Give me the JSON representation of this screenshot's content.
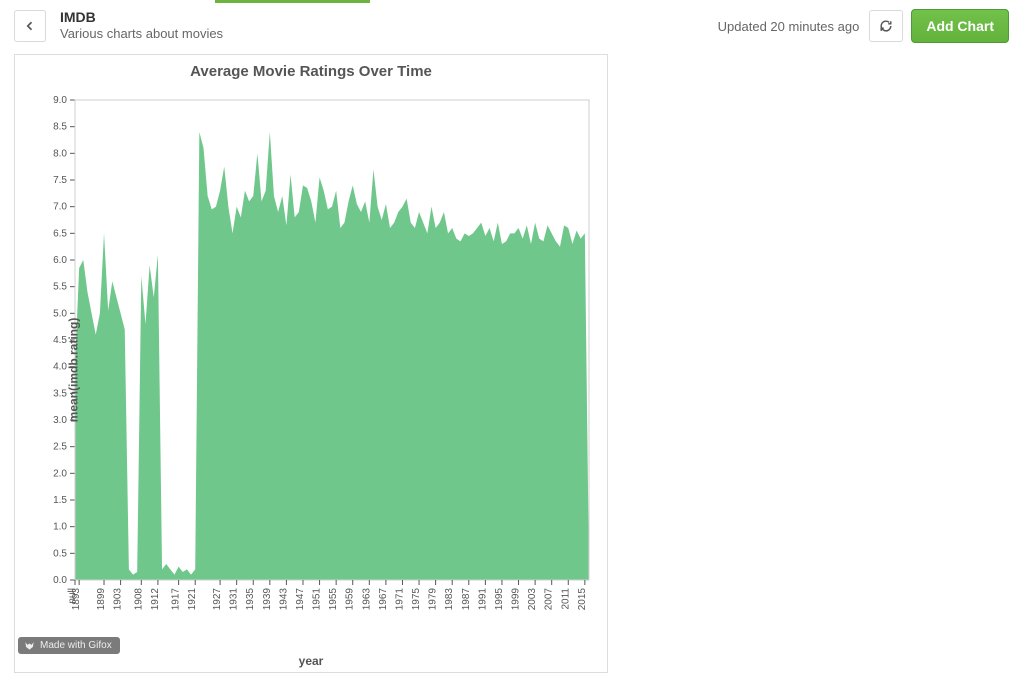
{
  "header": {
    "title": "IMDB",
    "subtitle": "Various charts about movies",
    "updated_text": "Updated 20 minutes ago",
    "add_chart_label": "Add Chart"
  },
  "accent_color": "#6db33f",
  "chart": {
    "type": "area",
    "title": "Average Movie Ratings Over Time",
    "title_fontsize": 15,
    "xlabel": "year",
    "ylabel": "mean(imdb.rating)",
    "label_fontsize": 12,
    "ylim": [
      0,
      9.0
    ],
    "ytick_step": 0.5,
    "yticks": [
      "0.0",
      "0.5",
      "1.0",
      "1.5",
      "2.0",
      "2.5",
      "3.0",
      "3.5",
      "4.0",
      "4.5",
      "5.0",
      "5.5",
      "6.0",
      "6.5",
      "7.0",
      "7.5",
      "8.0",
      "8.5",
      "9.0"
    ],
    "xticks": [
      "null",
      "1893",
      "1899",
      "1903",
      "1908",
      "1912",
      "1917",
      "1921",
      "1927",
      "1931",
      "1935",
      "1939",
      "1943",
      "1947",
      "1951",
      "1955",
      "1959",
      "1963",
      "1967",
      "1971",
      "1975",
      "1979",
      "1983",
      "1987",
      "1991",
      "1995",
      "1999",
      "2003",
      "2007",
      "2011",
      "2015"
    ],
    "xtick_step": 4,
    "xvalues_start": 0,
    "xvalues": [
      "null",
      "1893",
      "1894",
      "1895",
      "1896",
      "1897",
      "1898",
      "1899",
      "1900",
      "1901",
      "1902",
      "1903",
      "1904",
      "1905",
      "1906",
      "1907",
      "1908",
      "1909",
      "1910",
      "1911",
      "1912",
      "1913",
      "1914",
      "1915",
      "1916",
      "1917",
      "1918",
      "1919",
      "1920",
      "1921",
      "1922",
      "1923",
      "1924",
      "1925",
      "1926",
      "1927",
      "1928",
      "1929",
      "1930",
      "1931",
      "1932",
      "1933",
      "1934",
      "1935",
      "1936",
      "1937",
      "1938",
      "1939",
      "1940",
      "1941",
      "1942",
      "1943",
      "1944",
      "1945",
      "1946",
      "1947",
      "1948",
      "1949",
      "1950",
      "1951",
      "1952",
      "1953",
      "1954",
      "1955",
      "1956",
      "1957",
      "1958",
      "1959",
      "1960",
      "1961",
      "1962",
      "1963",
      "1964",
      "1965",
      "1966",
      "1967",
      "1968",
      "1969",
      "1970",
      "1971",
      "1972",
      "1973",
      "1974",
      "1975",
      "1976",
      "1977",
      "1978",
      "1979",
      "1980",
      "1981",
      "1982",
      "1983",
      "1984",
      "1985",
      "1986",
      "1987",
      "1988",
      "1989",
      "1990",
      "1991",
      "1992",
      "1993",
      "1994",
      "1995",
      "1996",
      "1997",
      "1998",
      "1999",
      "2000",
      "2001",
      "2002",
      "2003",
      "2004",
      "2005",
      "2006",
      "2007",
      "2008",
      "2009",
      "2010",
      "2011",
      "2012",
      "2013",
      "2014",
      "2015",
      "2016"
    ],
    "yvalues": [
      4.0,
      5.85,
      6.0,
      5.4,
      5.0,
      4.6,
      5.0,
      6.5,
      5.05,
      5.6,
      5.3,
      5.0,
      4.7,
      0.2,
      0.1,
      0.15,
      5.7,
      4.8,
      5.9,
      5.3,
      6.1,
      0.2,
      0.3,
      0.2,
      0.1,
      0.25,
      0.15,
      0.2,
      0.1,
      0.2,
      8.4,
      8.1,
      7.2,
      6.95,
      7.0,
      7.3,
      7.75,
      7.0,
      6.5,
      7.0,
      6.8,
      7.3,
      7.1,
      7.2,
      8.0,
      7.1,
      7.3,
      8.4,
      7.2,
      6.9,
      7.2,
      6.65,
      7.6,
      6.8,
      6.9,
      7.4,
      7.35,
      7.1,
      6.7,
      7.55,
      7.3,
      6.95,
      7.0,
      7.3,
      6.6,
      6.7,
      7.1,
      7.4,
      7.05,
      6.9,
      7.1,
      6.7,
      7.7,
      7.0,
      6.75,
      7.05,
      6.6,
      6.7,
      6.9,
      7.0,
      7.15,
      6.7,
      6.6,
      6.9,
      6.7,
      6.5,
      7.0,
      6.6,
      6.7,
      6.9,
      6.5,
      6.6,
      6.4,
      6.35,
      6.5,
      6.45,
      6.5,
      6.6,
      6.7,
      6.45,
      6.6,
      6.35,
      6.7,
      6.3,
      6.35,
      6.5,
      6.5,
      6.6,
      6.4,
      6.65,
      6.3,
      6.7,
      6.4,
      6.35,
      6.65,
      6.5,
      6.35,
      6.25,
      6.65,
      6.6,
      6.3,
      6.55,
      6.4,
      6.5,
      0.2
    ],
    "series_color": "#70c78c",
    "background_color": "#ffffff",
    "plot_border_color": "#cfcfcf",
    "tick_color": "#555555",
    "tick_fontsize": 10
  },
  "badge": {
    "text": "Made with Gifox"
  },
  "buttons": {
    "add_chart_bg": "#6db33f",
    "add_chart_text_color": "#ffffff"
  }
}
